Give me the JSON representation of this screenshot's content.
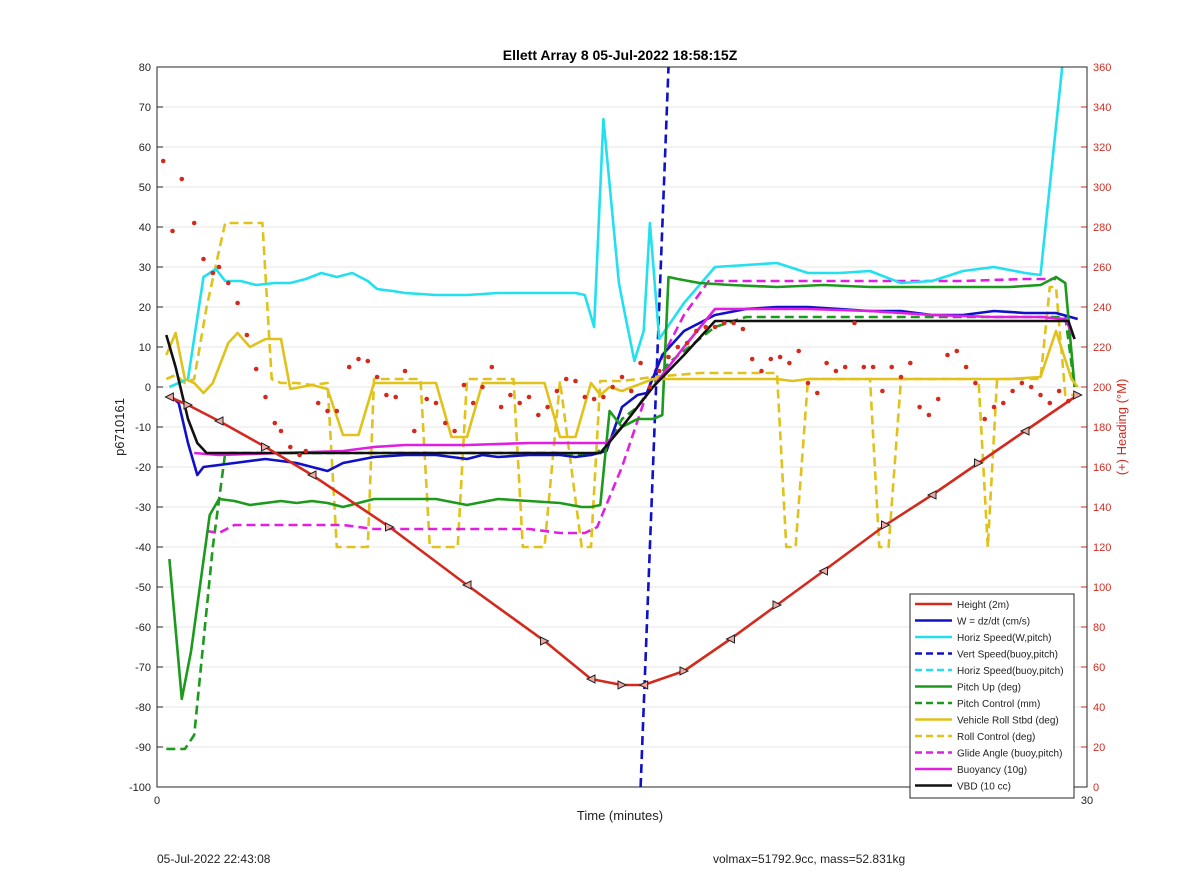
{
  "chart_data": {
    "type": "line",
    "title": "Ellett Array 8 05-Jul-2022 18:58:15Z",
    "xlabel": "Time (minutes)",
    "ylabel": "p6710161",
    "ylabel_right": "(+) Heading (°M)",
    "xlim": [
      0,
      30
    ],
    "ylim": [
      -100,
      80
    ],
    "ylim_right": [
      0,
      360
    ],
    "xticks": [
      0,
      30
    ],
    "yticks": [
      -100,
      -90,
      -80,
      -70,
      -60,
      -50,
      -40,
      -30,
      -20,
      -10,
      0,
      10,
      20,
      30,
      40,
      50,
      60,
      70,
      80
    ],
    "yticks_right": [
      0,
      20,
      40,
      60,
      80,
      100,
      120,
      140,
      160,
      180,
      200,
      220,
      240,
      260,
      280,
      300,
      320,
      340,
      360
    ],
    "grid": "horizontal",
    "legend_position": "bottom-right",
    "series": [
      {
        "name": "Height (2m)",
        "color": "#d42a1e",
        "style": "solid",
        "marker": "triangle",
        "x": [
          0.4,
          1.0,
          2.0,
          3.5,
          5.0,
          7.5,
          10.0,
          12.5,
          14.0,
          15.0,
          15.7,
          17.0,
          18.5,
          20.0,
          21.5,
          23.5,
          25.0,
          26.5,
          28.0,
          29.7
        ],
        "y": [
          -2.5,
          -4.5,
          -8.5,
          -15,
          -22,
          -35,
          -49.5,
          -63.5,
          -73,
          -74.5,
          -74.5,
          -71,
          -63,
          -54.5,
          -46,
          -34.5,
          -27,
          -19,
          -11,
          -2
        ]
      },
      {
        "name": "W = dz/dt (cm/s)",
        "color": "#1010c8",
        "style": "solid",
        "x": [
          0.4,
          0.7,
          1.0,
          1.3,
          1.5,
          2.0,
          2.5,
          3.5,
          4.5,
          5.0,
          5.5,
          6.0,
          7.0,
          8.0,
          9.0,
          9.5,
          10.0,
          10.5,
          11.0,
          12.0,
          13.0,
          13.5,
          14.0,
          14.5,
          15.0,
          15.5,
          15.8,
          16.3,
          17.0,
          18.0,
          19.0,
          20.0,
          21.0,
          22.0,
          23.0,
          24.0,
          25.0,
          26.0,
          27.0,
          28.0,
          29.0,
          29.7
        ],
        "y": [
          -2,
          -4,
          -14,
          -22,
          -20,
          -19.5,
          -19,
          -18,
          -19,
          -20,
          -21,
          -19,
          -17.5,
          -17,
          -17,
          -17.5,
          -18,
          -17,
          -17.5,
          -17,
          -17,
          -17.5,
          -17,
          -16,
          -5,
          -2,
          -1.5,
          8,
          14,
          18,
          19.5,
          20,
          20,
          19.5,
          19,
          19,
          18,
          18,
          19,
          18.5,
          18.5,
          17
        ]
      },
      {
        "name": "Horiz Speed(W,pitch)",
        "color": "#22e0f0",
        "style": "solid",
        "x": [
          0.4,
          1.0,
          1.5,
          1.9,
          2.2,
          2.7,
          3.2,
          3.8,
          4.3,
          4.8,
          5.3,
          5.8,
          6.3,
          6.8,
          7.1,
          7.6,
          8.0,
          9.0,
          10.0,
          11.0,
          12.0,
          13.0,
          13.5,
          13.8,
          14.1,
          14.4,
          14.9,
          15.1,
          15.4,
          15.7,
          15.9,
          16.2,
          17.0,
          18.0,
          19.0,
          20.0,
          21.0,
          22.0,
          23.0,
          24.0,
          25.0,
          26.0,
          27.0,
          28.0,
          28.5,
          29.2
        ],
        "y": [
          0,
          2,
          27.5,
          29.5,
          26.5,
          26.5,
          25.5,
          26,
          26,
          27,
          28.5,
          27.5,
          28.5,
          26.5,
          24.5,
          24,
          23.5,
          23,
          23,
          23.5,
          23.5,
          23.5,
          23.5,
          23,
          15,
          67,
          26,
          18,
          6.5,
          14,
          41,
          12,
          21,
          30,
          30.5,
          31,
          28.5,
          28.5,
          29,
          26,
          26.5,
          29,
          30,
          28.5,
          28,
          80
        ]
      },
      {
        "name": "Vert Speed(buoy,pitch)",
        "color": "#1010c8",
        "style": "dashed",
        "x": [
          15.6,
          16.5
        ],
        "y": [
          -100,
          80
        ]
      },
      {
        "name": "Horiz Speed(buoy,pitch)",
        "color": "#22e0f0",
        "style": "dashed",
        "x": [],
        "y": []
      },
      {
        "name": "Pitch Up (deg)",
        "color": "#1c9a1c",
        "style": "solid",
        "x": [
          0.4,
          0.8,
          1.1,
          1.7,
          2.0,
          2.5,
          3.0,
          4.0,
          4.5,
          5.0,
          5.5,
          6.0,
          7.0,
          8.0,
          9.0,
          10.0,
          11.0,
          12.0,
          13.0,
          13.7,
          14.0,
          14.3,
          14.6,
          15.0,
          15.5,
          16.0,
          16.3,
          16.5,
          16.8,
          17.5,
          18.5,
          20.0,
          21.5,
          23.0,
          24.5,
          26.0,
          27.5,
          28.5,
          29.0,
          29.3,
          29.6
        ],
        "y": [
          -43,
          -78,
          -66,
          -32,
          -28,
          -28.5,
          -29.5,
          -28.5,
          -29,
          -28.5,
          -29,
          -30,
          -28,
          -28,
          -28,
          -29.5,
          -28,
          -28.5,
          -29,
          -30,
          -30,
          -29.5,
          -6,
          -10,
          -8,
          -8,
          -7,
          27.5,
          27,
          26,
          25.5,
          25,
          25.5,
          25,
          25,
          25,
          25,
          25.5,
          27.5,
          26,
          0
        ]
      },
      {
        "name": "Pitch Control (mm)",
        "color": "#1c9a1c",
        "style": "dashed",
        "x": [
          0.3,
          0.9,
          1.2,
          1.8,
          2.2,
          5.0,
          10.0,
          13.0,
          14.0,
          14.5,
          15.0,
          15.5,
          16.5,
          18.0,
          19.0,
          24.0,
          28.5,
          29.3,
          29.6
        ],
        "y": [
          -90.5,
          -90.5,
          -87,
          -40,
          -16.5,
          -16.5,
          -16.5,
          -16.5,
          -17,
          -15,
          -8,
          -5,
          6,
          15,
          17.5,
          17.5,
          17.5,
          17.5,
          0
        ]
      },
      {
        "name": "Vehicle Roll Stbd (deg)",
        "color": "#e0c21a",
        "style": "solid",
        "x": [
          0.3,
          0.6,
          0.9,
          1.2,
          1.5,
          1.8,
          2.3,
          2.6,
          3.0,
          3.5,
          4.0,
          4.3,
          5.0,
          5.5,
          6.0,
          6.5,
          7.0,
          8.0,
          9.0,
          9.5,
          10.0,
          10.5,
          11.0,
          11.5,
          12.5,
          13.0,
          13.5,
          14.0,
          14.3,
          14.6,
          15.0,
          16.0,
          20.0,
          20.5,
          21.0,
          25.0,
          27.5,
          28.5,
          29.0,
          29.5,
          29.7
        ],
        "y": [
          8,
          13.5,
          2,
          1,
          -1.5,
          1,
          11,
          13.5,
          10,
          12,
          12,
          -0.5,
          0.5,
          -0.5,
          -12,
          -12,
          1,
          1,
          1,
          -12.5,
          -12.5,
          1,
          1,
          1,
          1,
          -12.5,
          -12.5,
          1,
          -2,
          0,
          -1,
          2,
          2,
          1.5,
          2,
          2,
          2,
          2.5,
          14,
          2,
          0
        ]
      },
      {
        "name": "Roll Control (deg)",
        "color": "#e0c21a",
        "style": "dashed",
        "x": [
          0.3,
          0.6,
          0.9,
          1.2,
          1.6,
          2.2,
          3.4,
          3.7,
          4.0,
          4.5,
          5.0,
          5.5,
          5.8,
          6.3,
          6.8,
          7.0,
          7.5,
          8.0,
          8.5,
          8.8,
          9.3,
          9.7,
          10.0,
          10.5,
          11.5,
          11.8,
          12.2,
          12.5,
          13.0,
          13.7,
          14.0,
          14.3,
          15.0,
          16.0,
          17.5,
          20.0,
          20.3,
          20.6,
          21.0,
          23.0,
          23.3,
          23.6,
          24.0,
          26.5,
          26.8,
          27.1,
          27.4,
          28.0,
          28.5,
          28.8,
          29.0,
          29.3,
          29.6
        ],
        "y": [
          2,
          3,
          1,
          2,
          20,
          41,
          41,
          2,
          1,
          1,
          0.5,
          1,
          -40,
          -40,
          -40,
          2,
          2,
          2,
          2,
          -40,
          -40,
          -40,
          2,
          2,
          2,
          -40,
          -40,
          -40,
          1.5,
          -40,
          -40,
          1.5,
          1.5,
          2.5,
          3.5,
          3.5,
          -40,
          -40,
          2,
          2,
          -40,
          -40,
          2,
          2,
          -40,
          2,
          2,
          2,
          2,
          25,
          25,
          -2,
          -2
        ]
      },
      {
        "name": "Glide Angle (buoy,pitch)",
        "color": "#e020e0",
        "style": "dashed",
        "x": [
          1.6,
          2.0,
          2.5,
          3.0,
          4.0,
          5.0,
          6.0,
          7.0,
          8.0,
          9.0,
          10.0,
          11.0,
          12.0,
          13.0,
          13.8,
          14.2,
          15.0,
          16.0,
          17.0,
          17.8,
          18.5,
          20.0,
          22.0,
          24.0,
          26.0,
          28.0,
          29.0
        ],
        "y": [
          -36,
          -36.5,
          -34.5,
          -34.5,
          -34.5,
          -34.5,
          -34.5,
          -35.5,
          -35.5,
          -35.5,
          -35.5,
          -35.5,
          -35.5,
          -36.5,
          -36.5,
          -35,
          -20,
          3,
          18,
          26.5,
          26.5,
          26.5,
          26.5,
          26.5,
          26.5,
          27,
          27
        ]
      },
      {
        "name": "Buoyancy (10g)",
        "color": "#e020e0",
        "style": "solid",
        "x": [
          1.2,
          2.0,
          4.0,
          6.0,
          7.0,
          8.0,
          10.0,
          12.0,
          14.0,
          14.5,
          15.0,
          16.0,
          17.0,
          18.0,
          19.0,
          21.0,
          23.0,
          25.0,
          27.0,
          28.5,
          29.3,
          29.6
        ],
        "y": [
          -16.5,
          -17,
          -16.5,
          -16,
          -15,
          -14.5,
          -14.5,
          -14,
          -14,
          -14,
          -10,
          0,
          10,
          19.5,
          19.5,
          19.5,
          19,
          18,
          17.5,
          17.5,
          17,
          12
        ]
      },
      {
        "name": "VBD (10 cc)",
        "color": "#111111",
        "style": "solid",
        "x": [
          0.3,
          0.6,
          1.0,
          1.3,
          1.6,
          2.0,
          4.0,
          8.0,
          12.0,
          14.0,
          14.3,
          15.0,
          16.0,
          17.0,
          18.0,
          19.0,
          23.0,
          27.0,
          29.0,
          29.4,
          29.6
        ],
        "y": [
          13,
          5,
          -8,
          -14,
          -16.5,
          -16.5,
          -16.5,
          -16.5,
          -16.5,
          -16.5,
          -16.5,
          -10,
          0,
          8,
          16.5,
          16.5,
          16.5,
          16.5,
          16.5,
          16.5,
          12
        ]
      },
      {
        "name": "Heading",
        "color": "#d42a1e",
        "style": "dots",
        "axis": "right",
        "x": [
          0.2,
          0.5,
          0.8,
          1.2,
          1.5,
          1.8,
          2.0,
          2.3,
          2.6,
          2.9,
          3.2,
          3.5,
          3.8,
          4.0,
          4.3,
          4.6,
          4.8,
          5.2,
          5.5,
          5.8,
          6.2,
          6.5,
          6.8,
          7.1,
          7.4,
          7.7,
          8.0,
          8.3,
          8.7,
          9.0,
          9.3,
          9.6,
          9.9,
          10.2,
          10.5,
          10.8,
          11.1,
          11.4,
          11.7,
          12.0,
          12.3,
          12.6,
          12.9,
          13.2,
          13.5,
          13.8,
          14.1,
          14.4,
          14.7,
          15.0,
          15.3,
          15.6,
          15.9,
          16.2,
          16.5,
          16.8,
          17.1,
          17.4,
          17.7,
          18.0,
          18.3,
          18.6,
          18.9,
          19.2,
          19.5,
          19.8,
          20.1,
          20.4,
          20.7,
          21.0,
          21.3,
          21.6,
          21.9,
          22.2,
          22.5,
          22.8,
          23.1,
          23.4,
          23.7,
          24.0,
          24.3,
          24.6,
          24.9,
          25.2,
          25.5,
          25.8,
          26.1,
          26.4,
          26.7,
          27.0,
          27.3,
          27.6,
          27.9,
          28.2,
          28.5,
          28.8,
          29.1,
          29.4
        ],
        "y": [
          313,
          278,
          304,
          282,
          264,
          257,
          260,
          252,
          242,
          226,
          209,
          195,
          182,
          178,
          170,
          166,
          168,
          192,
          188,
          188,
          210,
          214,
          213,
          205,
          196,
          195,
          208,
          178,
          194,
          192,
          182,
          178,
          201,
          192,
          200,
          210,
          190,
          196,
          192,
          195,
          186,
          190,
          198,
          204,
          203,
          195,
          194,
          195,
          200,
          205,
          198,
          212,
          200,
          208,
          215,
          220,
          222,
          228,
          230,
          230,
          232,
          232,
          229,
          214,
          208,
          214,
          215,
          212,
          218,
          202,
          197,
          212,
          208,
          210,
          232,
          210,
          210,
          198,
          210,
          205,
          212,
          190,
          186,
          194,
          216,
          218,
          210,
          202,
          184,
          190,
          192,
          198,
          202,
          200,
          196,
          192,
          198,
          193
        ]
      }
    ]
  },
  "footer": {
    "timestamp": "05-Jul-2022 22:43:08",
    "info": "volmax=51792.9cc, mass=52.831kg"
  }
}
